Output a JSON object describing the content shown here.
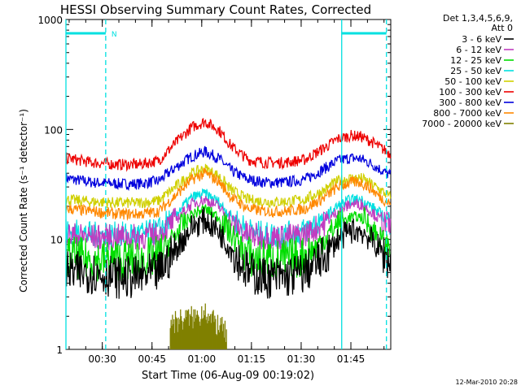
{
  "chart_data": {
    "type": "line",
    "title": "HESSI Observing Summary Count Rates, Corrected",
    "xlabel": "Start Time (06-Aug-09 00:19:02)",
    "ylabel": "Corrected Count Rate (s⁻¹ detector⁻¹)",
    "yscale": "log",
    "ylim": [
      1,
      1000
    ],
    "xlim_minutes": [
      0,
      98
    ],
    "x_ticks": [
      {
        "label": "00:30",
        "minute": 10.97
      },
      {
        "label": "00:45",
        "minute": 25.97
      },
      {
        "label": "01:00",
        "minute": 40.97
      },
      {
        "label": "01:15",
        "minute": 55.97
      },
      {
        "label": "01:30",
        "minute": 70.97
      },
      {
        "label": "01:45",
        "minute": 85.97
      }
    ],
    "y_ticks": [
      {
        "label": "1",
        "value": 1
      },
      {
        "label": "10",
        "value": 10
      },
      {
        "label": "100",
        "value": 100
      },
      {
        "label": "1000",
        "value": 1000
      }
    ],
    "legend": {
      "placement": "right",
      "header_line1": "Det 1,3,4,5,6,9,",
      "header_line2": "Att 0"
    },
    "series": [
      {
        "name": "3 - 6 keV",
        "color": "#000000",
        "x": [
          0,
          8,
          16,
          22,
          28,
          33,
          38,
          42,
          46,
          50,
          55,
          60,
          66,
          72,
          78,
          82,
          86,
          89,
          92,
          95,
          98
        ],
        "values": [
          5,
          5,
          4.5,
          4.5,
          5,
          8,
          13,
          15,
          12,
          8,
          5,
          4.5,
          4.5,
          5,
          7,
          10,
          12,
          12,
          10,
          8,
          6
        ]
      },
      {
        "name": "6 - 12 keV",
        "color": "#c03cc0",
        "x": [
          0,
          8,
          16,
          22,
          28,
          33,
          38,
          42,
          46,
          50,
          55,
          60,
          66,
          72,
          78,
          82,
          86,
          89,
          92,
          95,
          98
        ],
        "values": [
          11,
          10.5,
          10.5,
          10.5,
          11,
          15,
          21,
          23,
          20,
          14,
          11,
          10.5,
          10.5,
          11,
          14,
          18,
          21,
          21,
          18,
          15,
          13
        ]
      },
      {
        "name": "12 - 25 keV",
        "color": "#00dd00",
        "x": [
          0,
          8,
          16,
          22,
          28,
          33,
          38,
          42,
          46,
          50,
          55,
          60,
          66,
          72,
          78,
          82,
          86,
          89,
          92,
          95,
          98
        ],
        "values": [
          7,
          6.5,
          6.5,
          6.5,
          7,
          11,
          17,
          19,
          16,
          11,
          7,
          6.5,
          6.5,
          7,
          10,
          14,
          16,
          16,
          13,
          10,
          8
        ]
      },
      {
        "name": "25 - 50 keV",
        "color": "#00e0e0",
        "x": [
          0,
          8,
          16,
          22,
          28,
          33,
          38,
          42,
          46,
          50,
          55,
          60,
          66,
          72,
          78,
          82,
          86,
          89,
          92,
          95,
          98
        ],
        "values": [
          12,
          11,
          11,
          11,
          12,
          17,
          24,
          26,
          22,
          16,
          12,
          11,
          11,
          12,
          16,
          20,
          23,
          23,
          20,
          17,
          14
        ]
      },
      {
        "name": "50 - 100 keV",
        "color": "#d0d000",
        "x": [
          0,
          8,
          16,
          22,
          28,
          33,
          38,
          42,
          46,
          50,
          55,
          60,
          66,
          72,
          78,
          82,
          86,
          89,
          92,
          95,
          98
        ],
        "values": [
          23,
          22,
          21.5,
          21.5,
          22.5,
          30,
          40,
          44,
          38,
          28,
          23,
          22,
          22,
          23,
          28,
          34,
          36,
          36,
          32,
          28,
          24
        ]
      },
      {
        "name": "100 - 300 keV",
        "color": "#ee0000",
        "x": [
          0,
          8,
          16,
          22,
          28,
          33,
          38,
          42,
          46,
          50,
          55,
          60,
          66,
          72,
          78,
          82,
          86,
          89,
          92,
          95,
          98
        ],
        "values": [
          55,
          50,
          48,
          48,
          52,
          75,
          105,
          118,
          100,
          70,
          53,
          50,
          50,
          53,
          68,
          82,
          88,
          86,
          78,
          68,
          60
        ]
      },
      {
        "name": "300 - 800 keV",
        "color": "#0000dd",
        "x": [
          0,
          8,
          16,
          22,
          28,
          33,
          38,
          42,
          46,
          50,
          55,
          60,
          66,
          72,
          78,
          82,
          86,
          89,
          92,
          95,
          98
        ],
        "values": [
          36,
          33,
          32,
          32,
          34,
          45,
          57,
          63,
          55,
          42,
          35,
          33,
          33,
          35,
          44,
          52,
          55,
          54,
          49,
          43,
          38
        ]
      },
      {
        "name": "800 - 7000 keV",
        "color": "#ff8800",
        "x": [
          0,
          8,
          16,
          22,
          28,
          33,
          38,
          42,
          46,
          50,
          55,
          60,
          66,
          72,
          78,
          82,
          86,
          89,
          92,
          95,
          98
        ],
        "values": [
          19,
          18,
          17,
          17,
          18,
          25,
          35,
          40,
          34,
          24,
          19,
          18,
          18,
          19,
          24,
          30,
          33,
          33,
          29,
          24,
          21
        ]
      },
      {
        "name": "7000 - 20000 keV",
        "color": "#808000",
        "x": [
          31.5,
          35,
          38,
          40,
          42,
          43,
          45,
          47,
          48.5
        ],
        "values": [
          1.8,
          1.9,
          2.0,
          2.0,
          2.5,
          1.9,
          1.8,
          1.6,
          1.4
        ]
      }
    ],
    "annotations": {
      "cyan_verticals_solid_minutes": [
        0,
        83.2
      ],
      "cyan_verticals_dashed_minutes": [
        12,
        96.7
      ],
      "night_bars_minutes": [
        [
          0,
          12
        ],
        [
          83.2,
          96.7
        ]
      ],
      "night_label": "N",
      "colors": {
        "annotation": "#00e0e0"
      }
    }
  },
  "footer": {
    "timestamp": "12-Mar-2010 20:28"
  }
}
